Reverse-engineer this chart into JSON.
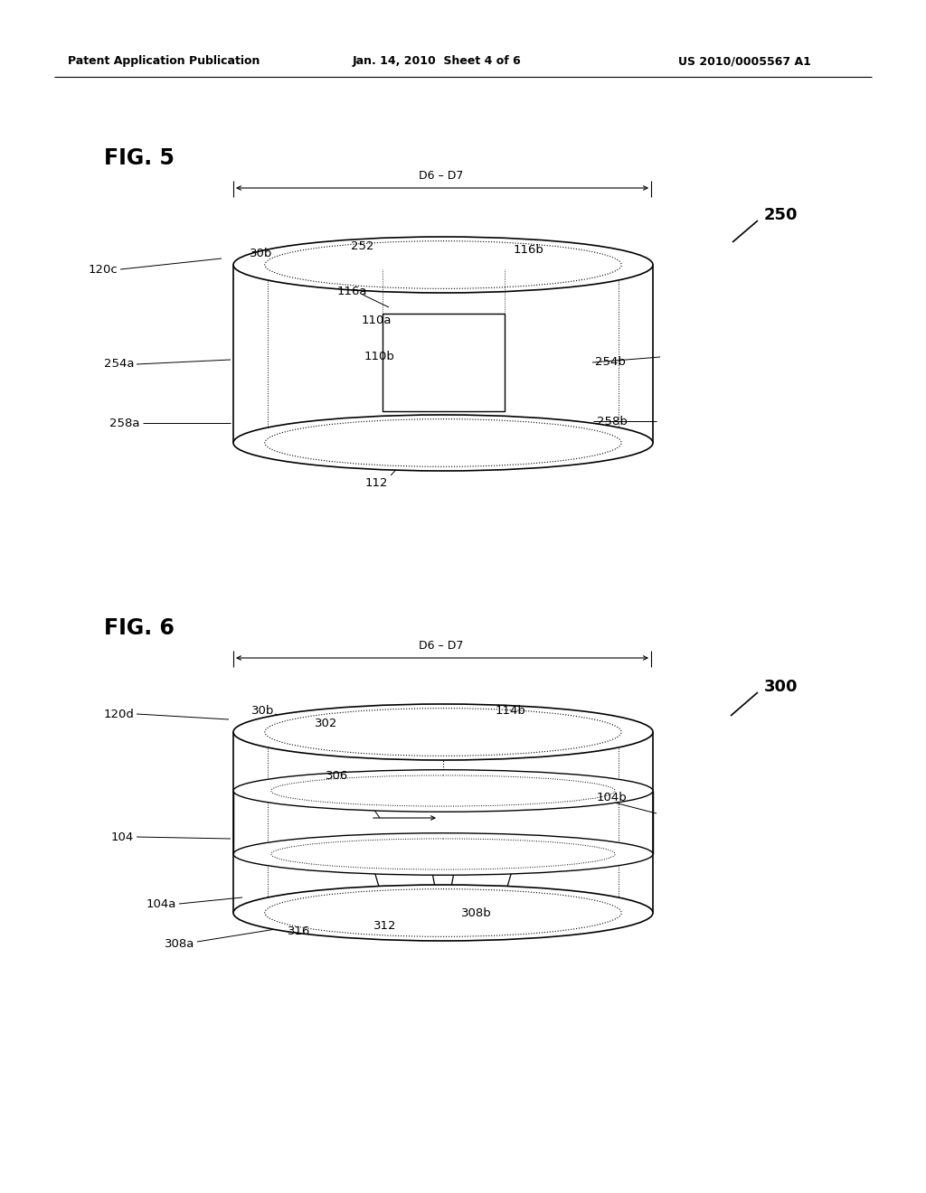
{
  "header_left": "Patent Application Publication",
  "header_mid": "Jan. 14, 2010  Sheet 4 of 6",
  "header_right": "US 2010/0005567 A1",
  "fig5_label": "FIG. 5",
  "fig6_label": "FIG. 6",
  "fig5_ref": "250",
  "fig6_ref": "300",
  "background_color": "#ffffff",
  "line_color": "#000000"
}
